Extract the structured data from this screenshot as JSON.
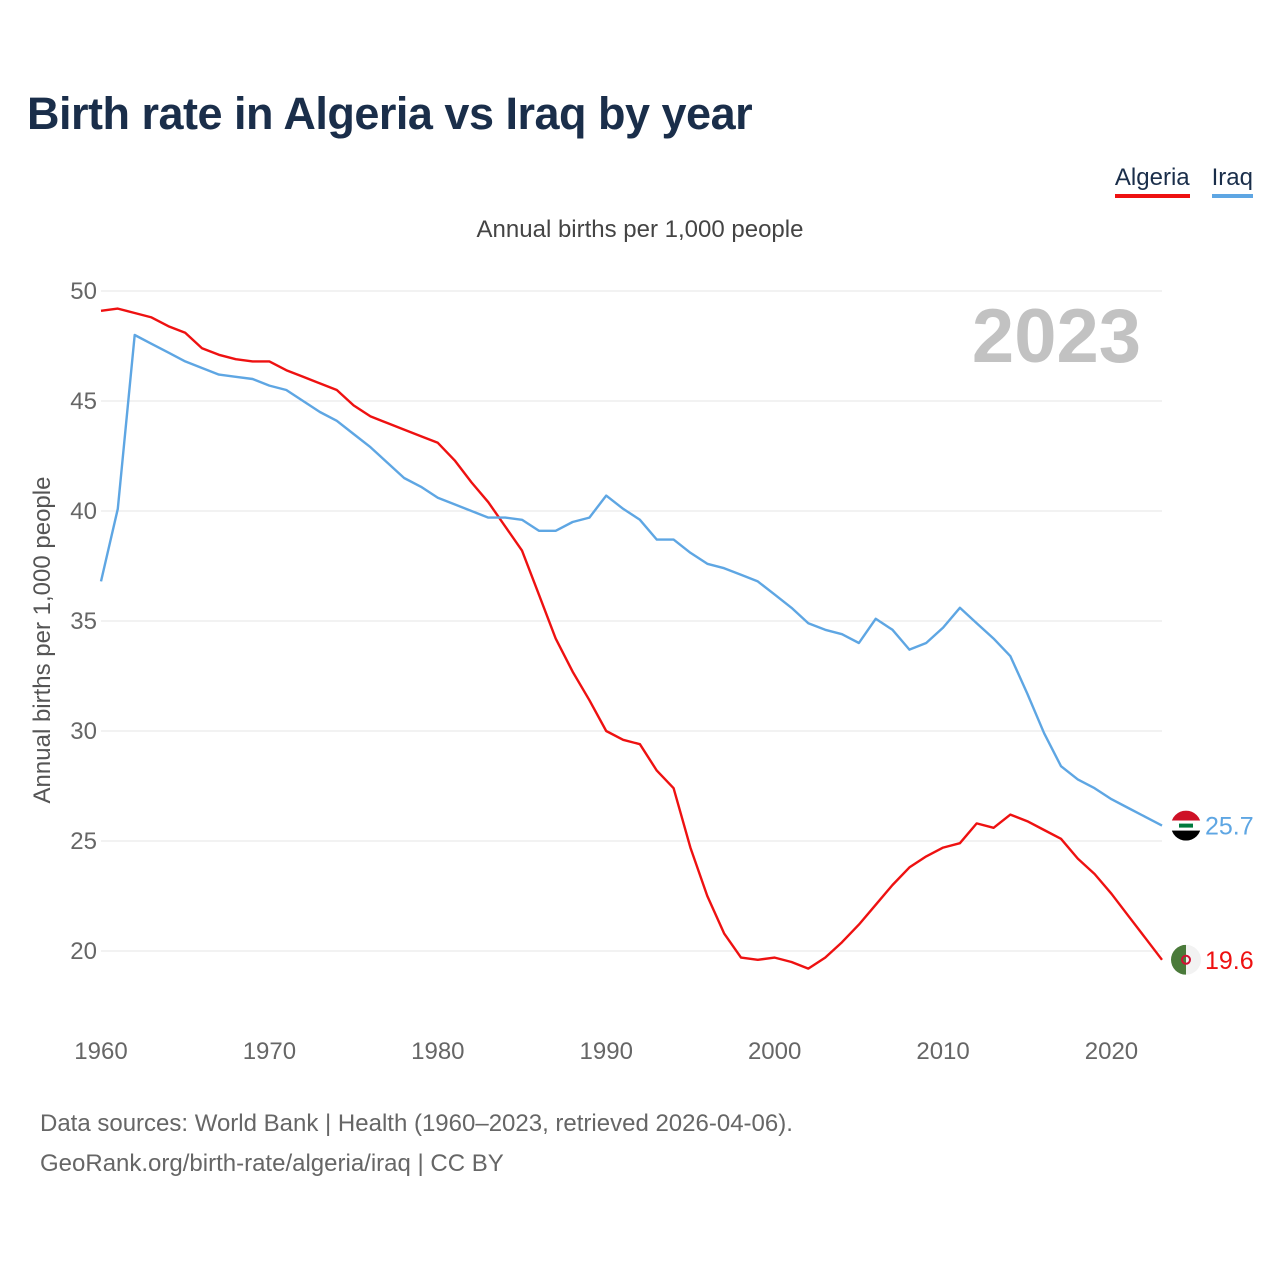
{
  "title": "Birth rate in Algeria vs Iraq by year",
  "subtitle": "Annual births per 1,000 people",
  "legend": [
    {
      "name": "Algeria",
      "color": "#ee1111"
    },
    {
      "name": "Iraq",
      "color": "#5ea6e3"
    }
  ],
  "year_label": "2023",
  "footer": {
    "line1": "Data sources: World Bank | Health (1960–2023, retrieved 2026-04-06).",
    "line2": "GeoRank.org/birth-rate/algeria/iraq | CC BY"
  },
  "chart_data": {
    "type": "line",
    "ylabel": "Annual births per 1,000 people",
    "xlim": [
      1960,
      2023
    ],
    "ylim": [
      17,
      50
    ],
    "x_ticks": [
      1960,
      1970,
      1980,
      1990,
      2000,
      2010,
      2020
    ],
    "y_ticks": [
      20,
      25,
      30,
      35,
      40,
      45,
      50
    ],
    "grid": true,
    "legend_position": "top-right",
    "x": [
      1960,
      1961,
      1962,
      1963,
      1964,
      1965,
      1966,
      1967,
      1968,
      1969,
      1970,
      1971,
      1972,
      1973,
      1974,
      1975,
      1976,
      1977,
      1978,
      1979,
      1980,
      1981,
      1982,
      1983,
      1984,
      1985,
      1986,
      1987,
      1988,
      1989,
      1990,
      1991,
      1992,
      1993,
      1994,
      1995,
      1996,
      1997,
      1998,
      1999,
      2000,
      2001,
      2002,
      2003,
      2004,
      2005,
      2006,
      2007,
      2008,
      2009,
      2010,
      2011,
      2012,
      2013,
      2014,
      2015,
      2016,
      2017,
      2018,
      2019,
      2020,
      2021,
      2022,
      2023
    ],
    "series": [
      {
        "name": "Algeria",
        "color": "#ee1111",
        "end_label": "19.6",
        "flag_icon": "algeria-flag-icon",
        "values": [
          49.1,
          49.2,
          49.0,
          48.8,
          48.4,
          48.1,
          47.4,
          47.1,
          46.9,
          46.8,
          46.8,
          46.4,
          46.1,
          45.8,
          45.5,
          44.8,
          44.3,
          44.0,
          43.7,
          43.4,
          43.1,
          42.3,
          41.3,
          40.4,
          39.3,
          38.2,
          36.2,
          34.2,
          32.7,
          31.4,
          30.0,
          29.6,
          29.4,
          28.2,
          27.4,
          24.7,
          22.5,
          20.8,
          19.7,
          19.6,
          19.7,
          19.5,
          19.2,
          19.7,
          20.4,
          21.2,
          22.1,
          23.0,
          23.8,
          24.3,
          24.7,
          24.9,
          25.8,
          25.6,
          26.2,
          25.9,
          25.5,
          25.1,
          24.2,
          23.5,
          22.6,
          21.6,
          20.6,
          19.6
        ]
      },
      {
        "name": "Iraq",
        "color": "#5ea6e3",
        "end_label": "25.7",
        "flag_icon": "iraq-flag-icon",
        "values": [
          36.8,
          40.1,
          48.0,
          47.6,
          47.2,
          46.8,
          46.5,
          46.2,
          46.1,
          46.0,
          45.7,
          45.5,
          45.0,
          44.5,
          44.1,
          43.5,
          42.9,
          42.2,
          41.5,
          41.1,
          40.6,
          40.3,
          40.0,
          39.7,
          39.7,
          39.6,
          39.1,
          39.1,
          39.5,
          39.7,
          40.7,
          40.1,
          39.6,
          38.7,
          38.7,
          38.1,
          37.6,
          37.4,
          37.1,
          36.8,
          36.2,
          35.6,
          34.9,
          34.6,
          34.4,
          34.0,
          35.1,
          34.6,
          33.7,
          34.0,
          34.7,
          35.6,
          34.9,
          34.2,
          33.4,
          31.7,
          29.9,
          28.4,
          27.8,
          27.4,
          26.9,
          26.5,
          26.1,
          25.7
        ]
      }
    ]
  }
}
